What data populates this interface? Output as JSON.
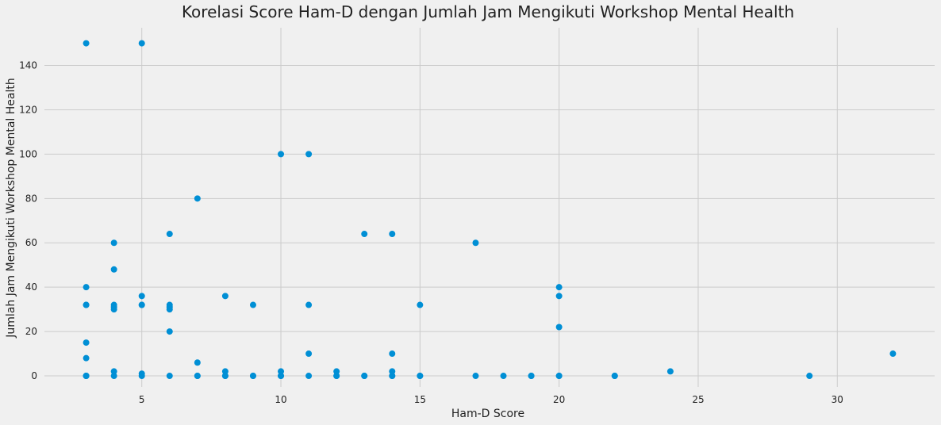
{
  "chart_data": {
    "type": "scatter",
    "title": "Korelasi Score Ham-D dengan Jumlah Jam Mengikuti Workshop Mental Health",
    "xlabel": "Ham-D Score",
    "ylabel": "Jumlah Jam Mengikuti Workshop Mental Health",
    "xlim": [
      1.5,
      33.5
    ],
    "ylim": [
      -5,
      157
    ],
    "xticks": [
      5,
      10,
      15,
      20,
      25,
      30
    ],
    "yticks": [
      0,
      20,
      40,
      60,
      80,
      100,
      120,
      140
    ],
    "grid": true,
    "marker_color": "#008fd5",
    "series": [
      {
        "x": [
          3,
          3,
          3,
          3,
          3,
          3,
          3,
          3,
          3,
          4,
          4,
          4,
          4,
          4,
          4,
          4,
          5,
          5,
          5,
          5,
          5,
          5,
          6,
          6,
          6,
          6,
          6,
          6,
          7,
          7,
          7,
          7,
          8,
          8,
          8,
          8,
          9,
          9,
          9,
          10,
          10,
          10,
          10,
          11,
          11,
          11,
          11,
          12,
          12,
          12,
          13,
          13,
          13,
          14,
          14,
          14,
          14,
          14,
          15,
          15,
          15,
          17,
          17,
          18,
          19,
          19,
          20,
          20,
          20,
          20,
          20,
          22,
          22,
          24,
          29,
          32
        ],
        "y": [
          150,
          40,
          32,
          32,
          15,
          8,
          0,
          0,
          0,
          60,
          48,
          32,
          31,
          30,
          2,
          0,
          150,
          36,
          32,
          32,
          1,
          0,
          64,
          32,
          31,
          30,
          20,
          0,
          80,
          6,
          0,
          0,
          36,
          2,
          0,
          0,
          32,
          0,
          0,
          100,
          2,
          0,
          0,
          100,
          32,
          10,
          0,
          2,
          0,
          0,
          64,
          0,
          0,
          64,
          10,
          2,
          0,
          0,
          32,
          0,
          0,
          60,
          0,
          0,
          0,
          0,
          40,
          36,
          22,
          0,
          0,
          0,
          0,
          2,
          0,
          10
        ]
      }
    ]
  }
}
